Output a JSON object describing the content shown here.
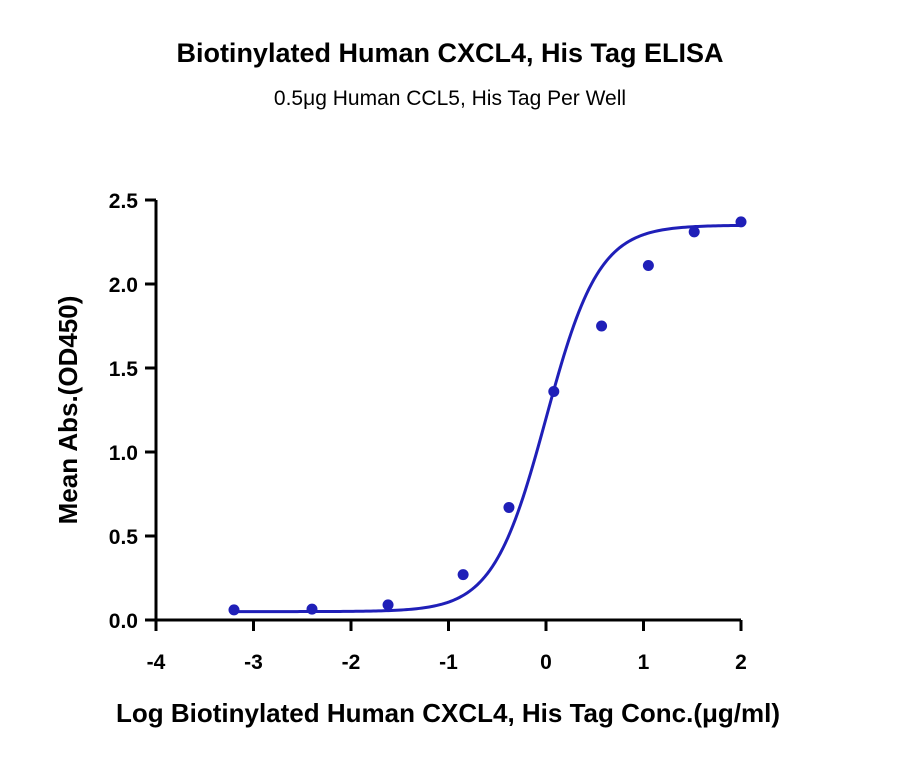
{
  "chart_data": {
    "type": "scatter",
    "title": "Biotinylated Human CXCL4, His Tag ELISA",
    "subtitle": "0.5μg Human CCL5, His Tag Per Well",
    "xlabel": "Log Biotinylated Human CXCL4, His Tag Conc.(μg/ml)",
    "ylabel": "Mean Abs.(OD450)",
    "xlim": [
      -4,
      2
    ],
    "ylim": [
      0,
      2.5
    ],
    "x_ticks": [
      -4,
      -3,
      -2,
      -1,
      0,
      1,
      2
    ],
    "x_tick_labels": [
      "-4",
      "-3",
      "-2",
      "-1",
      "0",
      "1",
      "2"
    ],
    "y_ticks": [
      0,
      0.5,
      1,
      1.5,
      2,
      2.5
    ],
    "y_tick_labels": [
      "0.0",
      "0.5",
      "1.0",
      "1.5",
      "2.0",
      "2.5"
    ],
    "grid": false,
    "legend": "none",
    "series": [
      {
        "x": [
          -3.2,
          -2.4,
          -1.62,
          -0.85,
          -0.38,
          0.08,
          0.57,
          1.05,
          1.52,
          2.0
        ],
        "y": [
          0.06,
          0.065,
          0.09,
          0.27,
          0.67,
          1.36,
          1.75,
          2.11,
          2.31,
          2.37
        ],
        "fit": "sigmoidal",
        "color": "#1f1fb8"
      }
    ]
  }
}
